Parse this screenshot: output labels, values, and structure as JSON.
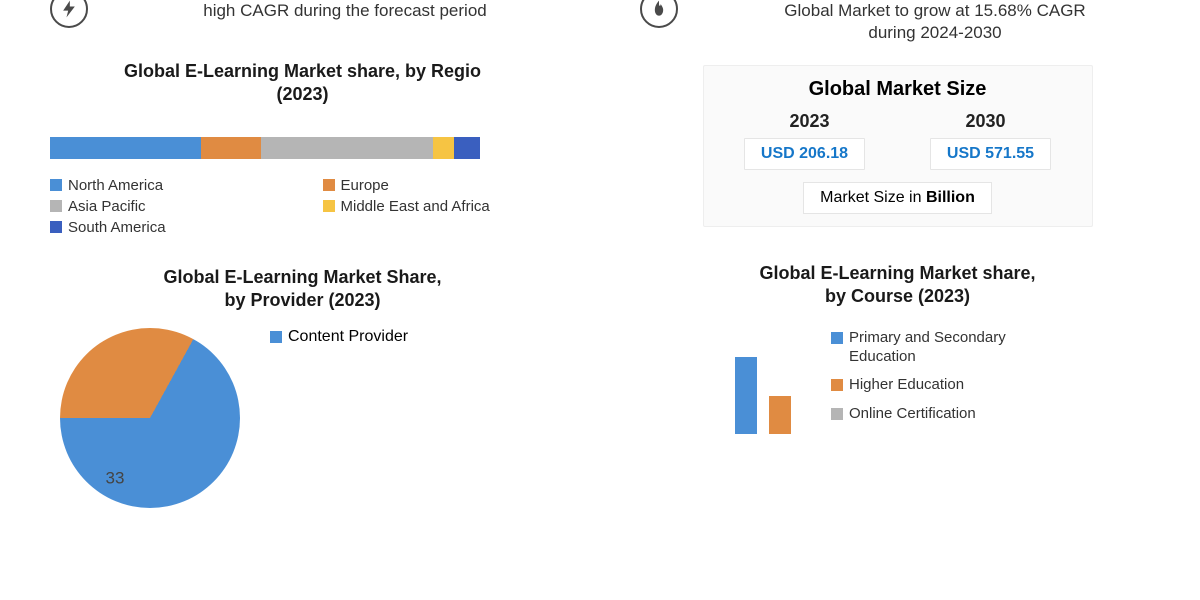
{
  "colors": {
    "blue": "#4a8fd6",
    "orange": "#e08b42",
    "gray": "#b5b5b5",
    "yellow": "#f6c443",
    "darkblue": "#3a5fbf",
    "value_blue": "#1677c9",
    "text": "#2a2a2a"
  },
  "header_left": {
    "text": "high CAGR during the forecast period"
  },
  "header_right": {
    "line1": "Global Market to grow at 15.68% CAGR",
    "line2": "during 2024-2030"
  },
  "region_chart": {
    "type": "stacked-bar",
    "title_l1": "Global E-Learning Market share, by Regio",
    "title_l2": "(2023)",
    "segments": [
      {
        "label": "North America",
        "pct": 35,
        "color": "#4a8fd6"
      },
      {
        "label": "Europe",
        "pct": 14,
        "color": "#e08b42"
      },
      {
        "label": "Asia Pacific",
        "pct": 40,
        "color": "#b5b5b5"
      },
      {
        "label": "Middle East and Africa",
        "pct": 5,
        "color": "#f6c443"
      },
      {
        "label": "South America",
        "pct": 6,
        "color": "#3a5fbf"
      }
    ],
    "legend_order": [
      [
        "North America",
        "#4a8fd6"
      ],
      [
        "Europe",
        "#e08b42"
      ],
      [
        "Asia Pacific",
        "#b5b5b5"
      ],
      [
        "Middle East and Africa",
        "#f6c443"
      ],
      [
        "South America",
        "#3a5fbf"
      ]
    ]
  },
  "provider_chart": {
    "type": "pie",
    "title_l1": "Global E-Learning Market Share,",
    "title_l2": "by Provider (2023)",
    "slices": [
      {
        "label": "Content Provider",
        "value": 67,
        "color": "#4a8fd6"
      },
      {
        "label": "",
        "value": 33,
        "color": "#e08b42"
      }
    ],
    "visible_label": "33",
    "legend_label": "Content Provider"
  },
  "market_size": {
    "title": "Global Market Size",
    "year1": "2023",
    "year2": "2030",
    "val1": "USD 206.18",
    "val2": "USD 571.55",
    "unit_prefix": "Market Size in ",
    "unit_bold": "Billion"
  },
  "course_chart": {
    "type": "bar",
    "title_l1": "Global E-Learning Market share,",
    "title_l2": "by Course (2023)",
    "bars": [
      {
        "label": "Primary and Secondary Education",
        "height_pct": 85,
        "color": "#4a8fd6"
      },
      {
        "label": "Higher Education",
        "height_pct": 42,
        "color": "#e08b42"
      }
    ],
    "legend": [
      {
        "label": "Primary and Secondary Education",
        "color": "#4a8fd6"
      },
      {
        "label": "Higher Education",
        "color": "#e08b42"
      },
      {
        "label": "Online Certification",
        "color": "#b5b5b5"
      }
    ]
  }
}
